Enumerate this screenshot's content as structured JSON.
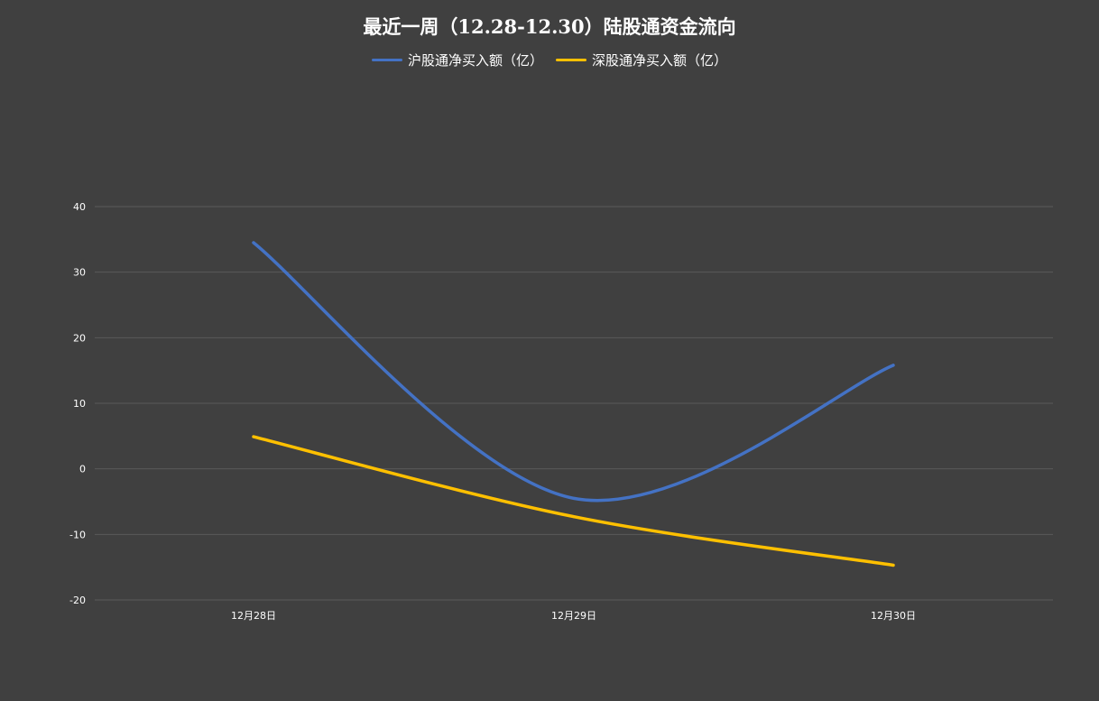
{
  "chart_data": {
    "type": "line",
    "title": "最近一周（12.28-12.30）陆股通资金流向",
    "categories": [
      "12月28日",
      "12月29日",
      "12月30日"
    ],
    "series": [
      {
        "name": "沪股通净买入额（亿）",
        "values": [
          34.5,
          -4.5,
          15.8
        ],
        "color": "#4472C4"
      },
      {
        "name": "深股通净买入额（亿）",
        "values": [
          4.9,
          -7.3,
          -14.7
        ],
        "color": "#FFC000"
      }
    ],
    "ylim": [
      -20,
      40
    ],
    "yticks": [
      40,
      30,
      20,
      10,
      0,
      -10,
      -20
    ],
    "grid": true,
    "legend_position": "top",
    "smooth": true
  }
}
